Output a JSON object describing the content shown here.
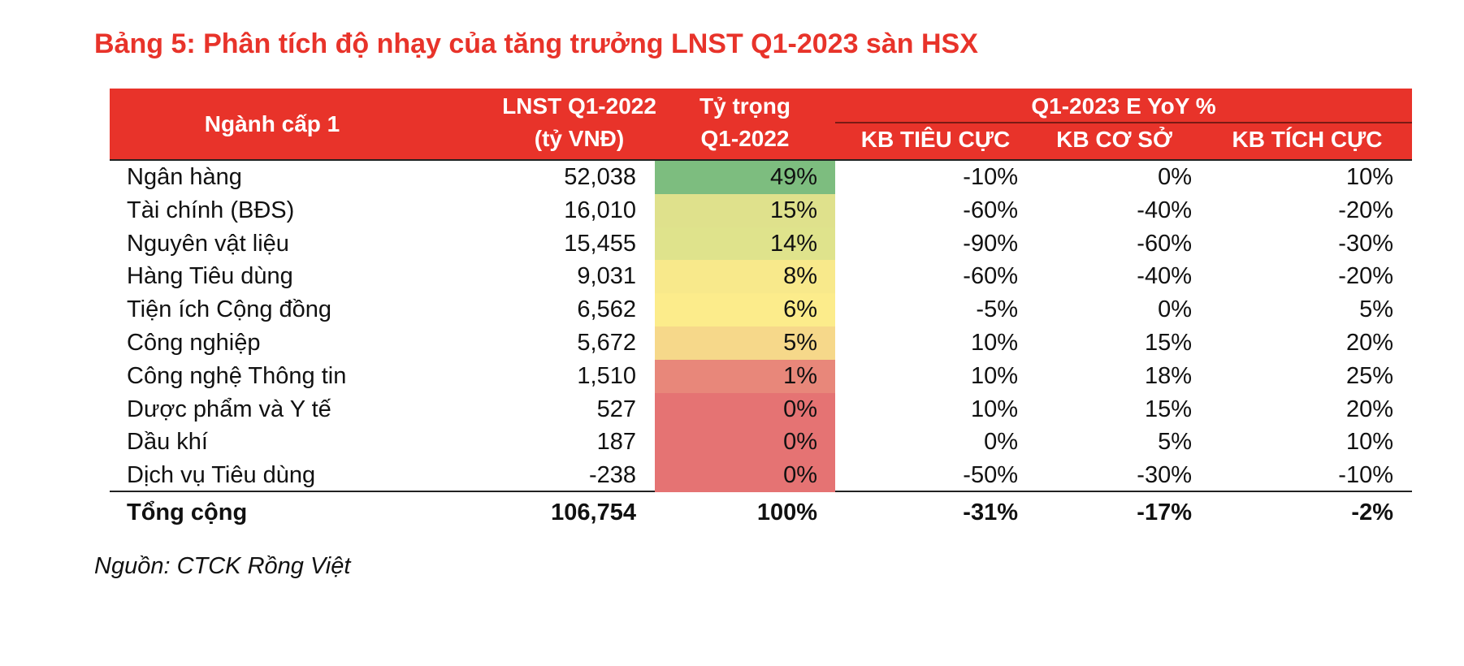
{
  "title": "Bảng 5: Phân tích độ nhạy của tăng trưởng LNST Q1-2023 sàn HSX",
  "table": {
    "header": {
      "sector": "Ngành cấp 1",
      "profit": [
        "LNST Q1-2022",
        "(tỷ VNĐ)"
      ],
      "weight": [
        "Tỷ trọng",
        "Q1-2022"
      ],
      "group": "Q1-2023 E YoY %",
      "scenarios": [
        "KB TIÊU CỰC",
        "KB CƠ SỞ",
        "KB TÍCH CỰC"
      ]
    },
    "rows": [
      [
        "Ngân hàng",
        "52,038",
        "49%",
        "-10%",
        "0%",
        "10%"
      ],
      [
        "Tài chính (BĐS)",
        "16,010",
        "15%",
        "-60%",
        "-40%",
        "-20%"
      ],
      [
        "Nguyên vật liệu",
        "15,455",
        "14%",
        "-90%",
        "-60%",
        "-30%"
      ],
      [
        "Hàng Tiêu dùng",
        "9,031",
        "8%",
        "-60%",
        "-40%",
        "-20%"
      ],
      [
        "Tiện ích Cộng đồng",
        "6,562",
        "6%",
        "-5%",
        "0%",
        "5%"
      ],
      [
        "Công nghiệp",
        "5,672",
        "5%",
        "10%",
        "15%",
        "20%"
      ],
      [
        "Công nghệ Thông tin",
        "1,510",
        "1%",
        "10%",
        "18%",
        "25%"
      ],
      [
        "Dược phẩm và Y tế",
        "527",
        "0%",
        "10%",
        "15%",
        "20%"
      ],
      [
        "Dầu khí",
        "187",
        "0%",
        "0%",
        "5%",
        "10%"
      ],
      [
        "Dịch vụ Tiêu dùng",
        "-238",
        "0%",
        "-50%",
        "-30%",
        "-10%"
      ]
    ],
    "weight_colors": [
      "#7dbd7f",
      "#dfe18c",
      "#dfe38c",
      "#f8e98b",
      "#fcec8b",
      "#f6d88a",
      "#e8877a",
      "#e57373",
      "#e57373",
      "#e57373"
    ],
    "total": [
      "Tổng cộng",
      "106,754",
      "100%",
      "-31%",
      "-17%",
      "-2%"
    ]
  },
  "source": "Nguồn: CTCK Rồng Việt"
}
